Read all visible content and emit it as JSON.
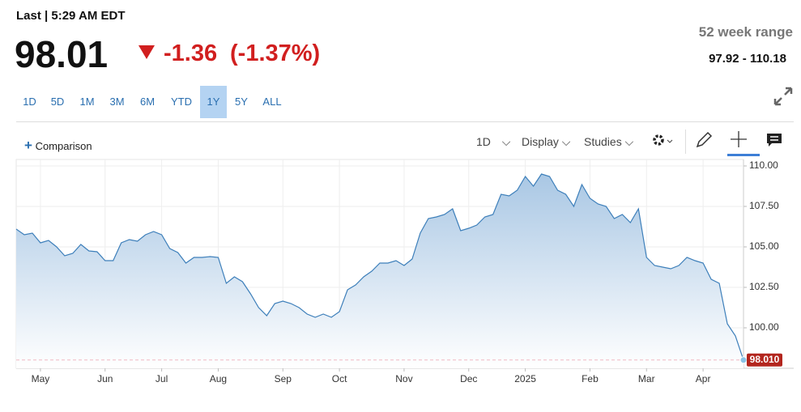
{
  "header": {
    "last_label": "Last | 5:29 AM EDT",
    "price": "98.01",
    "change": "-1.36",
    "change_pct": "(-1.37%)",
    "range_title": "52 week range",
    "range": "97.92 - 110.18"
  },
  "periods": [
    "1D",
    "5D",
    "1M",
    "3M",
    "6M",
    "YTD",
    "1Y",
    "5Y",
    "ALL"
  ],
  "active_period": "1Y",
  "toolbar": {
    "comparison": "Comparison",
    "interval": "1D",
    "display": "Display",
    "studies": "Studies"
  },
  "chart_data": {
    "type": "line",
    "color": "#3d7fba",
    "grid": true,
    "categories": [
      null,
      null,
      null,
      "May",
      null,
      null,
      null,
      null,
      null,
      null,
      null,
      "Jun",
      null,
      null,
      null,
      null,
      null,
      null,
      "Jul",
      null,
      null,
      null,
      null,
      null,
      null,
      "Aug",
      null,
      null,
      null,
      null,
      null,
      null,
      null,
      "Sep",
      null,
      null,
      null,
      null,
      null,
      null,
      "Oct",
      null,
      null,
      null,
      null,
      null,
      null,
      null,
      "Nov",
      null,
      null,
      null,
      null,
      null,
      null,
      null,
      "Dec",
      null,
      null,
      null,
      null,
      null,
      null,
      "2025",
      null,
      null,
      null,
      null,
      null,
      null,
      null,
      "Feb",
      null,
      null,
      null,
      null,
      null,
      null,
      "Mar",
      null,
      null,
      null,
      null,
      null,
      null,
      "Apr",
      null,
      null,
      null,
      null,
      null
    ],
    "values": [
      106.1,
      105.75,
      105.85,
      105.25,
      105.4,
      105.0,
      104.45,
      104.6,
      105.15,
      104.75,
      104.7,
      104.15,
      104.15,
      105.25,
      105.45,
      105.35,
      105.75,
      105.95,
      105.75,
      104.9,
      104.65,
      104.0,
      104.35,
      104.35,
      104.4,
      104.35,
      102.75,
      103.15,
      102.85,
      102.1,
      101.25,
      100.75,
      101.5,
      101.65,
      101.5,
      101.25,
      100.85,
      100.65,
      100.85,
      100.65,
      101.0,
      102.35,
      102.65,
      103.15,
      103.5,
      104.0,
      104.0,
      104.15,
      103.85,
      104.25,
      105.85,
      106.75,
      106.85,
      107.0,
      107.35,
      106.0,
      106.15,
      106.35,
      106.85,
      107.0,
      108.25,
      108.15,
      108.5,
      109.35,
      108.75,
      109.5,
      109.35,
      108.5,
      108.25,
      107.5,
      108.85,
      108.0,
      107.65,
      107.5,
      106.75,
      107.0,
      106.5,
      107.35,
      104.35,
      103.85,
      103.75,
      103.65,
      103.85,
      104.35,
      104.15,
      104.0,
      103.0,
      102.75,
      100.25,
      99.5,
      98.01
    ],
    "ylim": [
      97.5,
      110.4
    ],
    "yticks": [
      {
        "value": 100,
        "label": "100.00"
      },
      {
        "value": 102.5,
        "label": "102.50"
      },
      {
        "value": 105,
        "label": "105.00"
      },
      {
        "value": 107.5,
        "label": "107.50"
      },
      {
        "value": 110,
        "label": "110.00"
      }
    ],
    "last_price": {
      "value": 98.01,
      "label": "98.010"
    }
  }
}
